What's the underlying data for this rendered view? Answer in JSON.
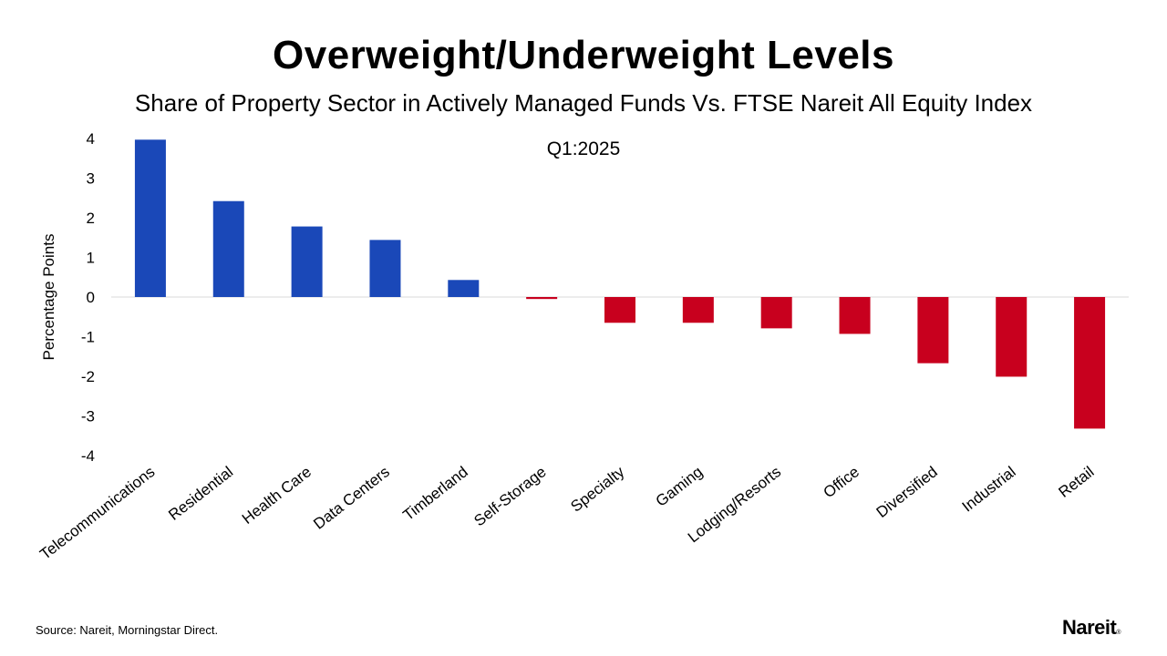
{
  "chart_data": {
    "type": "bar",
    "title": "Overweight/Underweight Levels",
    "subtitle": "Share of Property Sector in Actively Managed Funds Vs. FTSE Nareit All Equity Index",
    "annotation": "Q1:2025",
    "ylabel": "Percentage Points",
    "xlabel": "",
    "ylim": [
      -4,
      4
    ],
    "yticks": [
      4,
      3,
      2,
      1,
      0,
      -1,
      -2,
      -3,
      -4
    ],
    "grid": false,
    "categories": [
      "Telecommunications",
      "Residential",
      "Health Care",
      "Data Centers",
      "Timberland",
      "Self-Storage",
      "Specialty",
      "Gaming",
      "Lodging/Resorts",
      "Office",
      "Diversified",
      "Industrial",
      "Retail"
    ],
    "values": [
      3.97,
      2.42,
      1.78,
      1.44,
      0.43,
      -0.05,
      -0.65,
      -0.65,
      -0.79,
      -0.93,
      -1.67,
      -2.01,
      -3.32
    ],
    "colors": {
      "positive": "#1a48b8",
      "negative": "#c8001e",
      "axis": "#d9d9d9"
    }
  },
  "footer": {
    "source": "Source: Nareit, Morningstar Direct."
  },
  "logo": {
    "text": "Nareit",
    "mark": "®"
  }
}
